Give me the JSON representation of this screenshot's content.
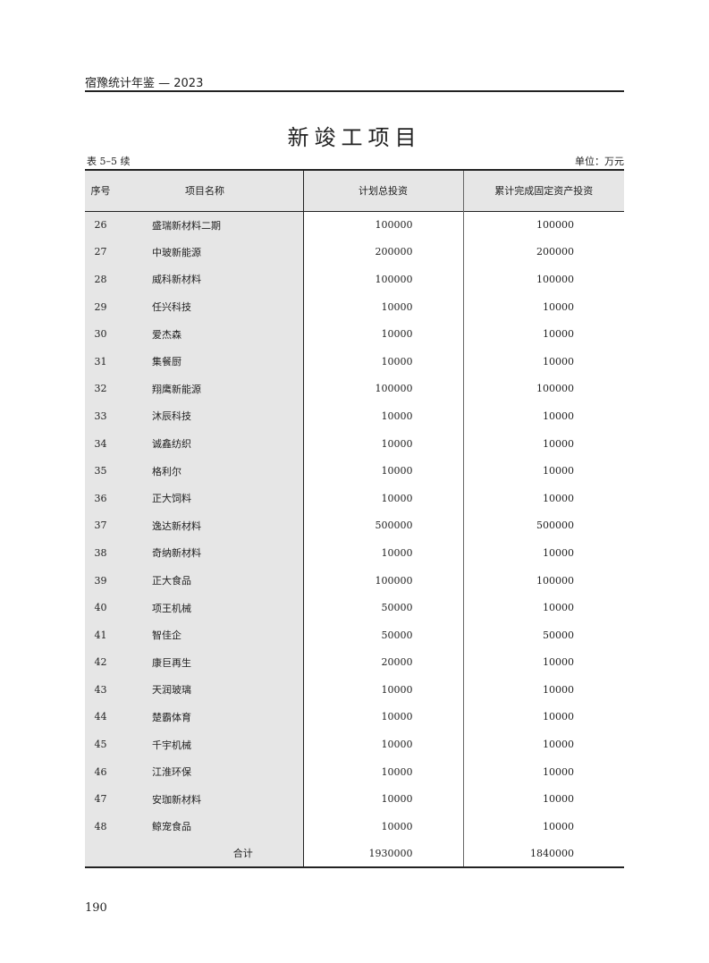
{
  "header": {
    "running_title": "宿豫统计年鉴 — 2023",
    "page_title": "新竣工项目",
    "table_number": "表 5–5 续",
    "unit": "单位：万元"
  },
  "table": {
    "columns": [
      "序号",
      "项目名称",
      "计划总投资",
      "累计完成固定资产投资"
    ],
    "rows": [
      [
        "26",
        "盛瑞新材料二期",
        "100000",
        "100000"
      ],
      [
        "27",
        "中玻新能源",
        "200000",
        "200000"
      ],
      [
        "28",
        "威科新材料",
        "100000",
        "100000"
      ],
      [
        "29",
        "任兴科技",
        "10000",
        "10000"
      ],
      [
        "30",
        "爱杰森",
        "10000",
        "10000"
      ],
      [
        "31",
        "集餐厨",
        "10000",
        "10000"
      ],
      [
        "32",
        "翔鹰新能源",
        "100000",
        "100000"
      ],
      [
        "33",
        "沐辰科技",
        "10000",
        "10000"
      ],
      [
        "34",
        "诚鑫纺织",
        "10000",
        "10000"
      ],
      [
        "35",
        "格利尔",
        "10000",
        "10000"
      ],
      [
        "36",
        "正大饲料",
        "10000",
        "10000"
      ],
      [
        "37",
        "逸达新材料",
        "500000",
        "500000"
      ],
      [
        "38",
        "奇纳新材料",
        "10000",
        "10000"
      ],
      [
        "39",
        "正大食品",
        "100000",
        "100000"
      ],
      [
        "40",
        "项王机械",
        "50000",
        "10000"
      ],
      [
        "41",
        "智佳企",
        "50000",
        "50000"
      ],
      [
        "42",
        "康巨再生",
        "20000",
        "10000"
      ],
      [
        "43",
        "天润玻璃",
        "10000",
        "10000"
      ],
      [
        "44",
        "楚霸体育",
        "10000",
        "10000"
      ],
      [
        "45",
        "千宇机械",
        "10000",
        "10000"
      ],
      [
        "46",
        "江淮环保",
        "10000",
        "10000"
      ],
      [
        "47",
        "安珈新材料",
        "10000",
        "10000"
      ],
      [
        "48",
        "鲸宠食品",
        "10000",
        "10000"
      ]
    ],
    "total": {
      "label": "合计",
      "planned": "1930000",
      "completed": "1840000"
    }
  },
  "footer": {
    "page_number": "190"
  }
}
